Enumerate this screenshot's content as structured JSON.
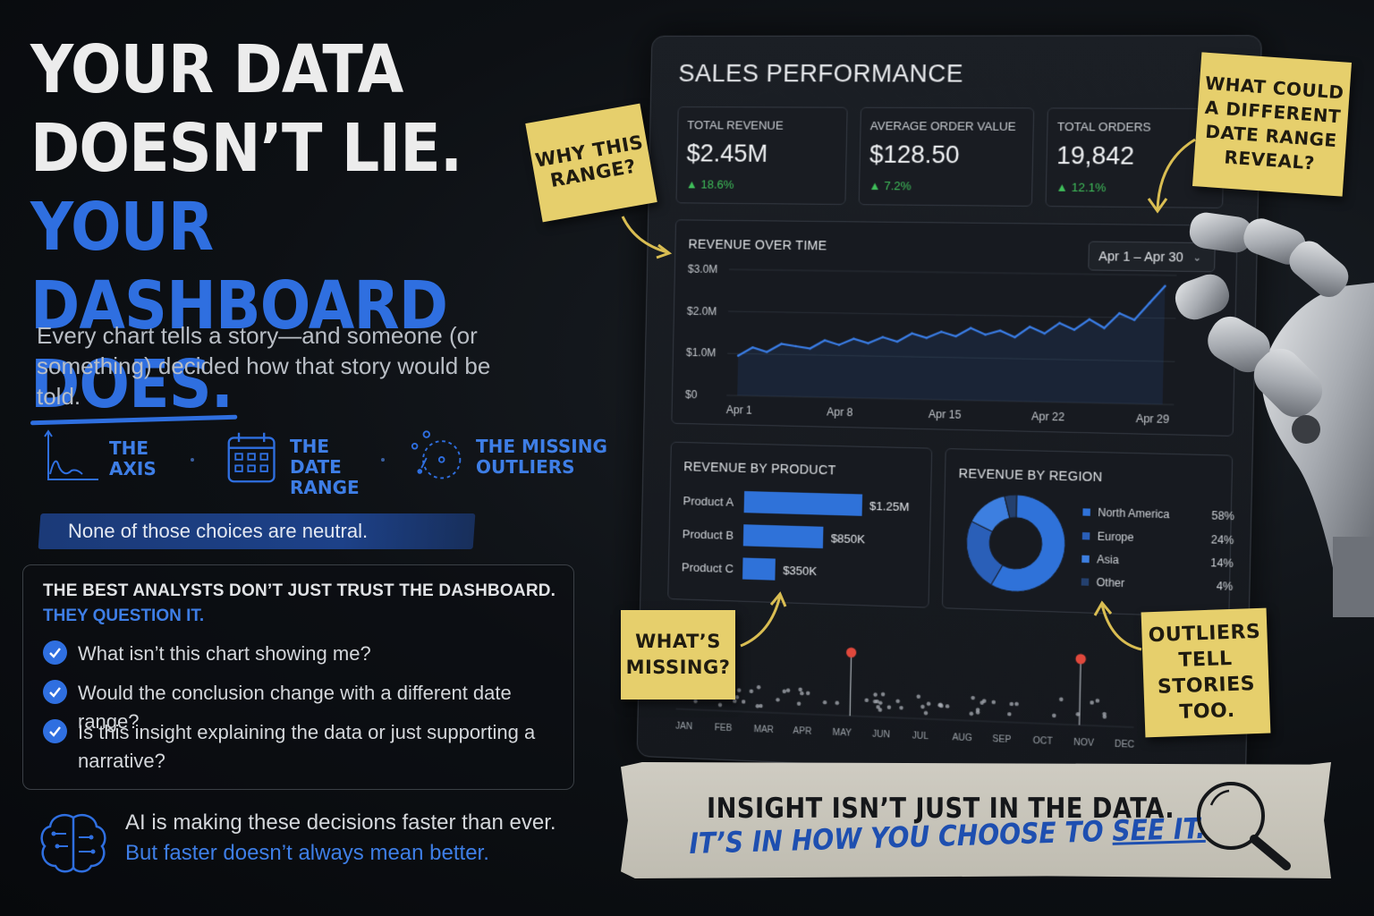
{
  "headline": {
    "line1": "YOUR DATA",
    "line2": "DOESN’T LIE.",
    "line3_prefix": "YOUR DASHBOARD ",
    "line3_emphasis": "DOES."
  },
  "subtext": "Every chart tells a story—and someone (or something) decided how that story would be told.",
  "concepts": [
    {
      "label_a": "THE",
      "label_b": "AXIS",
      "label_c": "",
      "icon": "axis-chart-icon"
    },
    {
      "label_a": "THE",
      "label_b": "DATE",
      "label_c": "RANGE",
      "icon": "calendar-icon"
    },
    {
      "label_a": "THE MISSING",
      "label_b": "OUTLIERS",
      "label_c": "",
      "icon": "outlier-circle-icon"
    }
  ],
  "neutral_statement": "None of those choices are neutral.",
  "questions": {
    "title": "THE BEST ANALYSTS DON’T JUST TRUST THE DASHBOARD.",
    "subtitle": "THEY QUESTION IT.",
    "items": [
      "What isn’t this chart showing me?",
      "Would the conclusion change with a different date range?",
      "Is this insight explaining the data or just supporting a narrative?"
    ]
  },
  "ai_note": {
    "line1": "AI is making these decisions faster than ever.",
    "line2": "But faster doesn’t always mean better."
  },
  "dashboard": {
    "title": "SALES PERFORMANCE",
    "kpis": [
      {
        "label": "TOTAL REVENUE",
        "value": "$2.45M",
        "change": "▲ 18.6%"
      },
      {
        "label": "AVERAGE ORDER VALUE",
        "value": "$128.50",
        "change": "▲ 7.2%"
      },
      {
        "label": "TOTAL ORDERS",
        "value": "19,842",
        "change": "▲ 12.1%"
      }
    ],
    "revenue_over_time": {
      "title": "REVENUE OVER TIME",
      "date_range": "Apr 1 – Apr 30",
      "y_ticks": [
        "$3.0M",
        "$2.0M",
        "$1.0M",
        "$0"
      ],
      "x_ticks": [
        "Apr 1",
        "Apr 8",
        "Apr 15",
        "Apr 22",
        "Apr 29"
      ]
    },
    "revenue_by_product": {
      "title": "REVENUE BY PRODUCT",
      "items": [
        {
          "label": "Product A",
          "value_text": "$1.25M",
          "value": 1.25
        },
        {
          "label": "Product B",
          "value_text": "$850K",
          "value": 0.85
        },
        {
          "label": "Product C",
          "value_text": "$350K",
          "value": 0.35
        }
      ]
    },
    "revenue_by_region": {
      "title": "REVENUE BY REGION",
      "items": [
        {
          "label": "North America",
          "pct_text": "58%",
          "pct": 58,
          "color": "#2f72d9"
        },
        {
          "label": "Europe",
          "pct_text": "24%",
          "pct": 24,
          "color": "#2a5fb8"
        },
        {
          "label": "Asia",
          "pct_text": "14%",
          "pct": 14,
          "color": "#3d7fe0"
        },
        {
          "label": "Other",
          "pct_text": "4%",
          "pct": 4,
          "color": "#24406e"
        }
      ]
    },
    "outlier_strip": {
      "months": [
        "JAN",
        "FEB",
        "MAR",
        "APR",
        "MAY",
        "JUN",
        "JUL",
        "AUG",
        "SEP",
        "OCT",
        "NOV",
        "DEC"
      ]
    }
  },
  "chart_data": {
    "type": "line",
    "title": "REVENUE OVER TIME",
    "xlabel": "",
    "ylabel": "",
    "ylim": [
      0,
      3.0
    ],
    "x": [
      "Apr 1",
      "Apr 2",
      "Apr 3",
      "Apr 4",
      "Apr 5",
      "Apr 6",
      "Apr 7",
      "Apr 8",
      "Apr 9",
      "Apr 10",
      "Apr 11",
      "Apr 12",
      "Apr 13",
      "Apr 14",
      "Apr 15",
      "Apr 16",
      "Apr 17",
      "Apr 18",
      "Apr 19",
      "Apr 20",
      "Apr 21",
      "Apr 22",
      "Apr 23",
      "Apr 24",
      "Apr 25",
      "Apr 26",
      "Apr 27",
      "Apr 28",
      "Apr 29",
      "Apr 30"
    ],
    "series": [
      {
        "values": [
          0.95,
          1.15,
          1.05,
          1.25,
          1.2,
          1.15,
          1.35,
          1.25,
          1.4,
          1.3,
          1.45,
          1.35,
          1.55,
          1.45,
          1.6,
          1.5,
          1.7,
          1.55,
          1.65,
          1.5,
          1.75,
          1.6,
          1.85,
          1.7,
          1.95,
          1.75,
          2.1,
          1.95,
          2.35,
          2.75
        ]
      }
    ]
  },
  "sticky_notes": {
    "why_range": "WHY THIS RANGE?",
    "different_range": "WHAT COULD A DIFFERENT DATE RANGE REVEAL?",
    "missing": "WHAT’S MISSING?",
    "outliers": "OUTLIERS TELL STORIES TOO."
  },
  "tape": {
    "line1": "INSIGHT ISN’T JUST IN THE DATA.",
    "line2_prefix": "IT’S IN HOW YOU CHOOSE TO ",
    "line2_emphasis": "SEE IT."
  },
  "colors": {
    "accent": "#2f6fe0",
    "positive": "#3fbf5a",
    "sticky": "#e6cf6c",
    "outlier": "#e0483c"
  }
}
